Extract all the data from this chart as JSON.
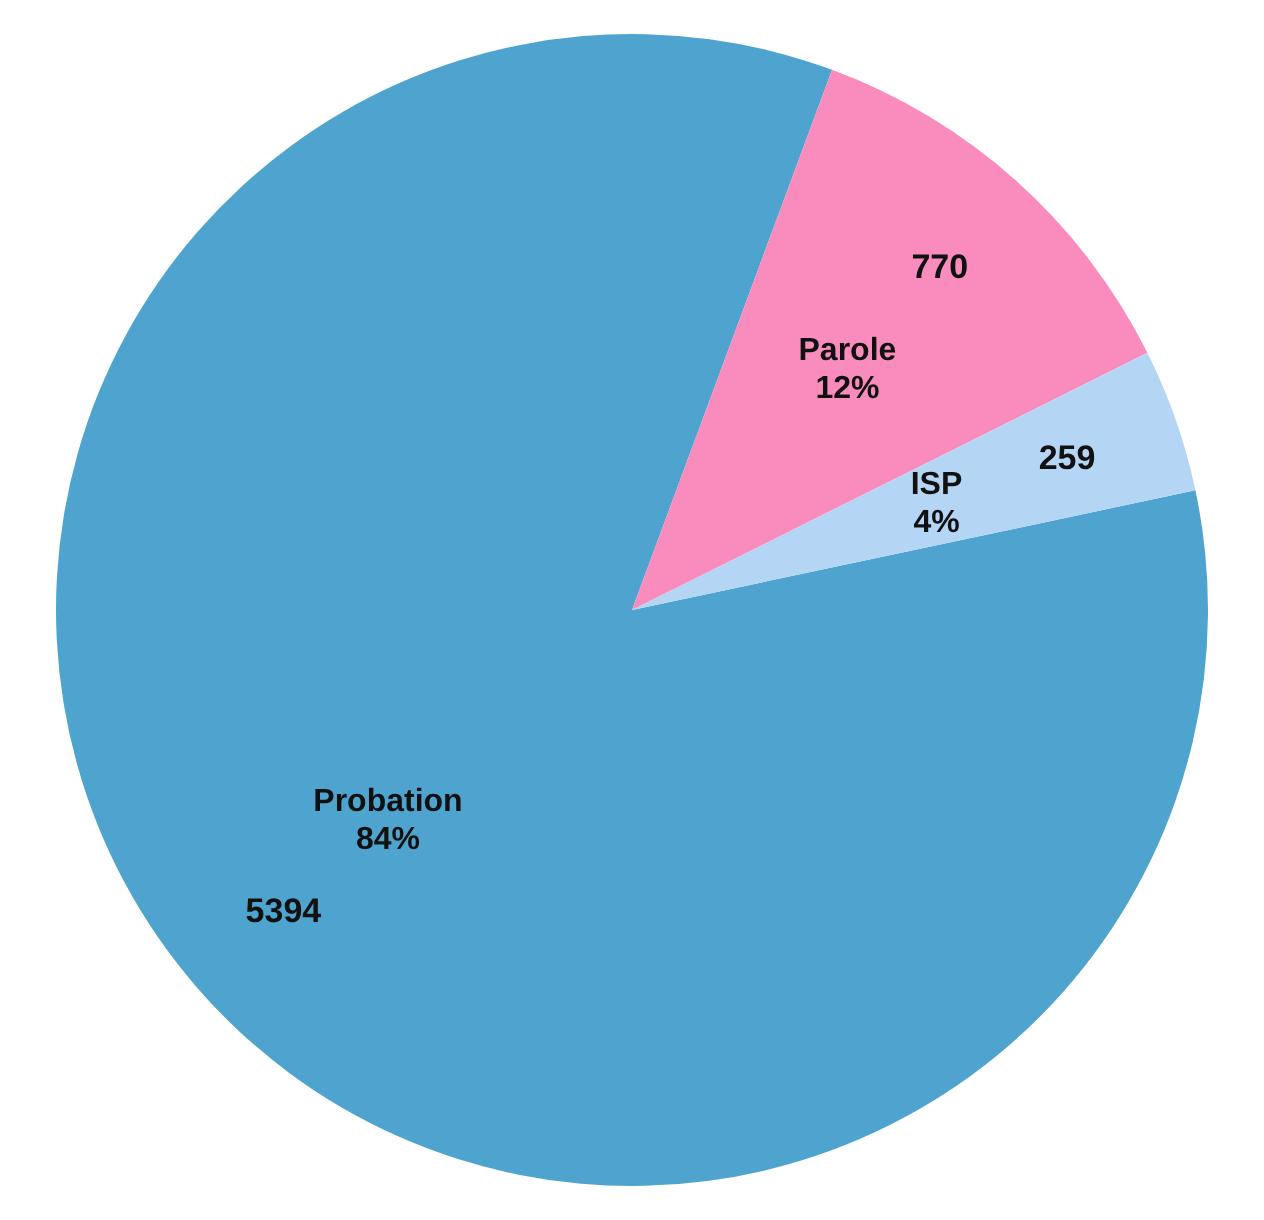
{
  "chart_data": {
    "type": "pie",
    "categories": [
      "Probation",
      "Parole",
      "ISP"
    ],
    "values": [
      5394,
      770,
      259
    ],
    "colors": [
      "#4ea4cf",
      "#f98cbc",
      "#b5d5f5"
    ],
    "data_labels": true,
    "annotations": [
      {
        "text": "84%",
        "x": "Probation"
      },
      {
        "text": "12%",
        "x": "Parole"
      },
      {
        "text": "4%",
        "x": "ISP"
      }
    ],
    "legend": false
  }
}
